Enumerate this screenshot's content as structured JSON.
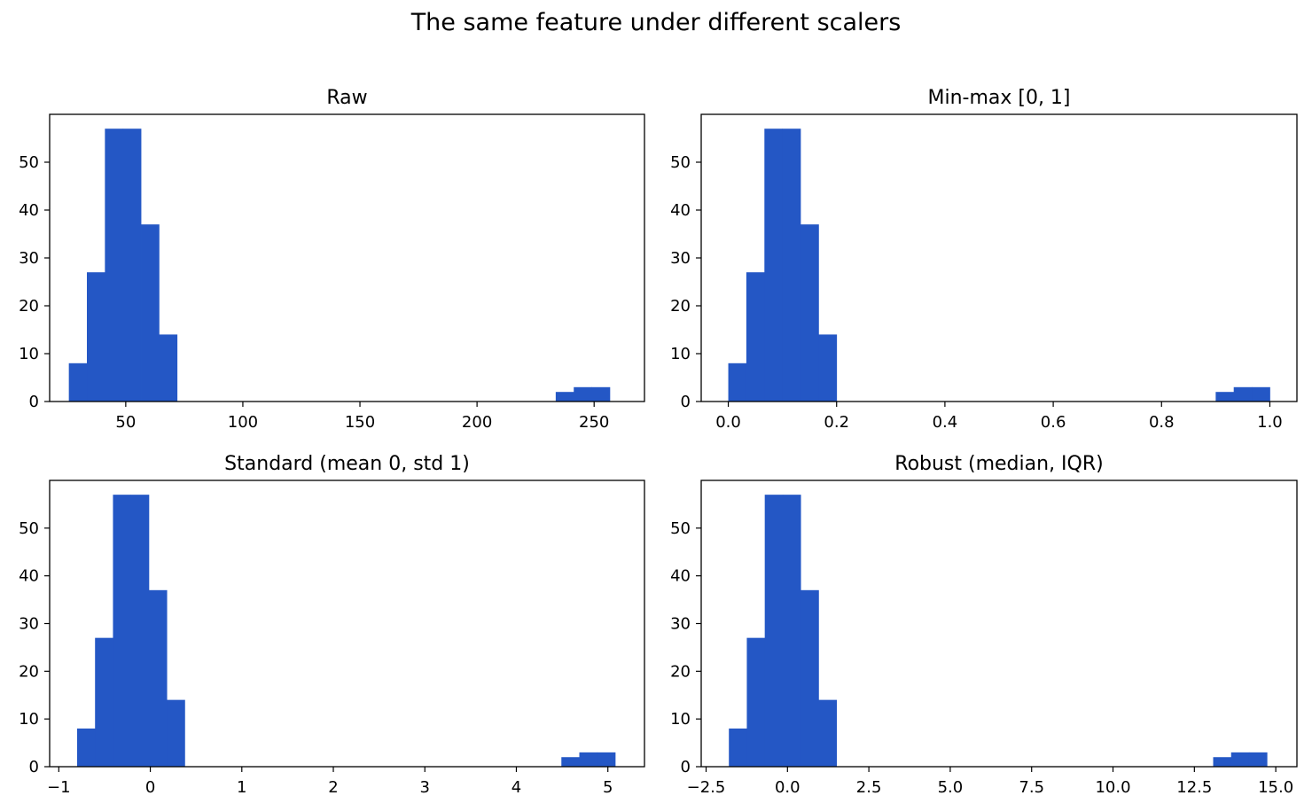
{
  "figure": {
    "suptitle": "The same feature under different scalers"
  },
  "chart_data": [
    {
      "type": "bar",
      "title": "Raw",
      "xlabel": "",
      "ylabel": "",
      "xlim": [
        17.5,
        271.5
      ],
      "ylim": [
        0,
        60
      ],
      "xticks": [
        50,
        100,
        150,
        200,
        250
      ],
      "xtick_labels": [
        "50",
        "100",
        "150",
        "200",
        "250"
      ],
      "yticks": [
        0,
        10,
        20,
        30,
        40,
        50
      ],
      "ytick_labels": [
        "0",
        "10",
        "20",
        "30",
        "40",
        "50"
      ],
      "bin_edges": [
        25.7,
        33.4,
        41.1,
        48.8,
        56.5,
        64.2,
        71.9,
        79.6,
        87.3,
        95.0,
        102.7,
        110.4,
        118.1,
        125.8,
        133.5,
        141.2,
        148.9,
        156.6,
        164.3,
        172.0,
        179.7,
        187.4,
        195.1,
        202.8,
        210.5,
        218.2,
        225.9,
        233.6,
        241.3,
        249.0,
        256.7
      ],
      "values": [
        8,
        27,
        57,
        57,
        37,
        14,
        0,
        0,
        0,
        0,
        0,
        0,
        0,
        0,
        0,
        0,
        0,
        0,
        0,
        0,
        0,
        0,
        0,
        0,
        0,
        0,
        0,
        2,
        3,
        3
      ],
      "color": "#2457c5",
      "grid": false
    },
    {
      "type": "bar",
      "title": "Min-max [0, 1]",
      "xlabel": "",
      "ylabel": "",
      "xlim": [
        -0.05,
        1.05
      ],
      "ylim": [
        0,
        60
      ],
      "xticks": [
        0.0,
        0.2,
        0.4,
        0.6,
        0.8,
        1.0
      ],
      "xtick_labels": [
        "0.0",
        "0.2",
        "0.4",
        "0.6",
        "0.8",
        "1.0"
      ],
      "yticks": [
        0,
        10,
        20,
        30,
        40,
        50
      ],
      "ytick_labels": [
        "0",
        "10",
        "20",
        "30",
        "40",
        "50"
      ],
      "bin_edges": [
        0.0,
        0.0333,
        0.0667,
        0.1,
        0.1333,
        0.1667,
        0.2,
        0.2333,
        0.2667,
        0.3,
        0.3333,
        0.3667,
        0.4,
        0.4333,
        0.4667,
        0.5,
        0.5333,
        0.5667,
        0.6,
        0.6333,
        0.6667,
        0.7,
        0.7333,
        0.7667,
        0.8,
        0.8333,
        0.8667,
        0.9,
        0.9333,
        0.9667,
        1.0
      ],
      "values": [
        8,
        27,
        57,
        57,
        37,
        14,
        0,
        0,
        0,
        0,
        0,
        0,
        0,
        0,
        0,
        0,
        0,
        0,
        0,
        0,
        0,
        0,
        0,
        0,
        0,
        0,
        0,
        2,
        3,
        3
      ],
      "color": "#2457c5",
      "grid": false
    },
    {
      "type": "bar",
      "title": "Standard (mean 0, std 1)",
      "xlabel": "",
      "ylabel": "",
      "xlim": [
        -1.1,
        5.4
      ],
      "ylim": [
        0,
        60
      ],
      "xticks": [
        -1,
        0,
        1,
        2,
        3,
        4,
        5
      ],
      "xtick_labels": [
        "−1",
        "0",
        "1",
        "2",
        "3",
        "4",
        "5"
      ],
      "yticks": [
        0,
        10,
        20,
        30,
        40,
        50
      ],
      "ytick_labels": [
        "0",
        "10",
        "20",
        "30",
        "40",
        "50"
      ],
      "bin_edges": [
        -0.8,
        -0.604,
        -0.408,
        -0.212,
        -0.016,
        0.18,
        0.376,
        0.572,
        0.768,
        0.964,
        1.16,
        1.356,
        1.552,
        1.748,
        1.944,
        2.14,
        2.336,
        2.532,
        2.728,
        2.924,
        3.12,
        3.316,
        3.512,
        3.708,
        3.904,
        4.1,
        4.296,
        4.492,
        4.688,
        4.884,
        5.08
      ],
      "values": [
        8,
        27,
        57,
        57,
        37,
        14,
        0,
        0,
        0,
        0,
        0,
        0,
        0,
        0,
        0,
        0,
        0,
        0,
        0,
        0,
        0,
        0,
        0,
        0,
        0,
        0,
        0,
        2,
        3,
        3
      ],
      "color": "#2457c5",
      "grid": false
    },
    {
      "type": "bar",
      "title": "Robust (median, IQR)",
      "xlabel": "",
      "ylabel": "",
      "xlim": [
        -2.65,
        15.65
      ],
      "ylim": [
        0,
        60
      ],
      "xticks": [
        -2.5,
        0.0,
        2.5,
        5.0,
        7.5,
        10.0,
        12.5,
        15.0
      ],
      "xtick_labels": [
        "−2.5",
        "0.0",
        "2.5",
        "5.0",
        "7.5",
        "10.0",
        "12.5",
        "15.0"
      ],
      "yticks": [
        0,
        10,
        20,
        30,
        40,
        50
      ],
      "ytick_labels": [
        "0",
        "10",
        "20",
        "30",
        "40",
        "50"
      ],
      "bin_edges": [
        -1.8,
        -1.249,
        -0.698,
        -0.147,
        0.404,
        0.955,
        1.506,
        2.057,
        2.608,
        3.159,
        3.71,
        4.261,
        4.812,
        5.363,
        5.914,
        6.465,
        7.016,
        7.567,
        8.118,
        8.669,
        9.22,
        9.771,
        10.322,
        10.873,
        11.424,
        11.975,
        12.526,
        13.077,
        13.628,
        14.179,
        14.73
      ],
      "values": [
        8,
        27,
        57,
        57,
        37,
        14,
        0,
        0,
        0,
        0,
        0,
        0,
        0,
        0,
        0,
        0,
        0,
        0,
        0,
        0,
        0,
        0,
        0,
        0,
        0,
        0,
        0,
        2,
        3,
        3
      ],
      "color": "#2457c5",
      "grid": false
    }
  ]
}
